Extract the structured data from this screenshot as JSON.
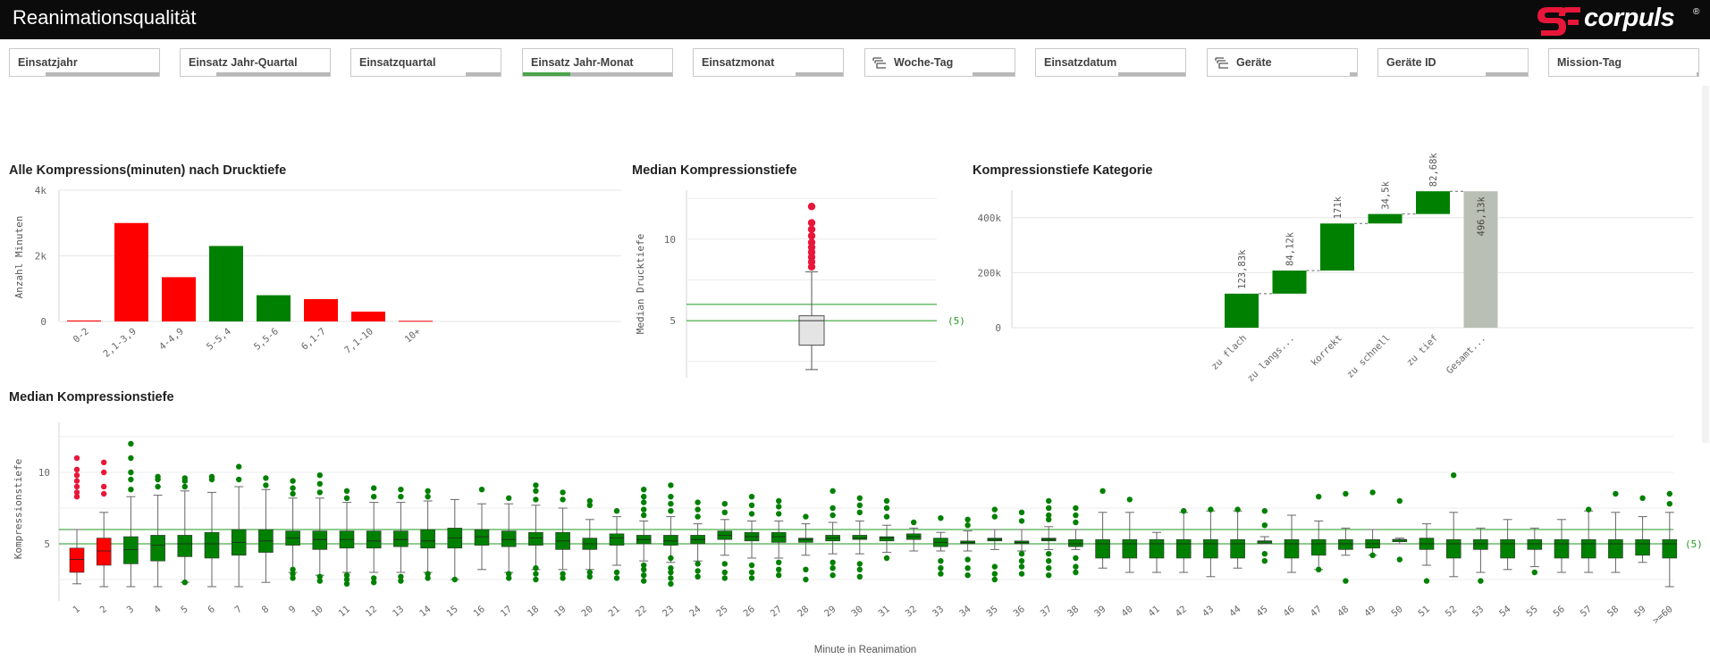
{
  "app": {
    "title": "Reanimationsqualität"
  },
  "logo": {
    "text": "corpuls",
    "registered": "®"
  },
  "filters": [
    {
      "label": "Einsatzjahr",
      "icon": "",
      "selected_fraction": 0
    },
    {
      "label": "Einsatz Jahr-Quartal",
      "icon": "",
      "selected_fraction": 0
    },
    {
      "label": "Einsatzquartal",
      "icon": "",
      "selected_fraction": 0
    },
    {
      "label": "Einsatz Jahr-Monat",
      "icon": "",
      "selected_fraction": 0.32
    },
    {
      "label": "Einsatzmonat",
      "icon": "",
      "selected_fraction": 0
    },
    {
      "label": "Woche-Tag",
      "icon": "drill-down-icon",
      "selected_fraction": 0
    },
    {
      "label": "Einsatzdatum",
      "icon": "",
      "selected_fraction": 0
    },
    {
      "label": "Geräte",
      "icon": "drill-down-icon",
      "selected_fraction": 0
    },
    {
      "label": "Geräte ID",
      "icon": "",
      "selected_fraction": 0
    },
    {
      "label": "Mission-Tag",
      "icon": "",
      "selected_fraction": 0
    }
  ],
  "colors": {
    "red": "#ff0000",
    "green": "#008000",
    "grey_total": "#b9bfb5",
    "ref_line": "#1f9a1f",
    "outlier_red": "#e8173a",
    "accent_filter": "#4aa34a"
  },
  "chart_data": [
    {
      "id": "histogram",
      "type": "bar",
      "title": "Alle Kompressions(minuten) nach Drucktiefe",
      "ylabel": "Anzahl Minuten",
      "xlabel": "",
      "ylim": [
        0,
        4000
      ],
      "yticks": [
        0,
        2000,
        4000
      ],
      "ytick_labels": [
        "0",
        "2k",
        "4k"
      ],
      "grid": true,
      "categories": [
        "0-2",
        "2,1-3,9",
        "4-4,9",
        "5-5,4",
        "5,5-6",
        "6,1-7",
        "7,1-10",
        "10+"
      ],
      "values": [
        30,
        3000,
        1350,
        2300,
        800,
        680,
        300,
        20
      ],
      "bar_colors": [
        "#ff0000",
        "#ff0000",
        "#ff0000",
        "#008000",
        "#008000",
        "#ff0000",
        "#ff0000",
        "#ff0000"
      ]
    },
    {
      "id": "overall-box",
      "type": "box",
      "title": "Median Kompressionstiefe",
      "ylabel": "Median Drucktiefe",
      "xlabel": "",
      "ylim": [
        1.5,
        13
      ],
      "yticks": [
        5,
        10
      ],
      "grid": true,
      "box": {
        "whisker_low": 2,
        "q1": 3.5,
        "median": 5,
        "q3": 5.3,
        "whisker_high": 8
      },
      "outliers": [
        8.3,
        8.6,
        8.9,
        9.2,
        9.5,
        9.8,
        10.2,
        10.6,
        11,
        12
      ],
      "ref_lines": [
        6,
        5
      ],
      "ref_label": "(5)"
    },
    {
      "id": "waterfall",
      "type": "waterfall",
      "title": "Kompressionstiefe Kategorie",
      "ylabel": "",
      "xlabel": "",
      "ylim": [
        0,
        500000
      ],
      "yticks": [
        0,
        200000,
        400000
      ],
      "ytick_labels": [
        "0",
        "200k",
        "400k"
      ],
      "grid": true,
      "categories": [
        "zu flach",
        "zu langs...",
        "korrekt",
        "zu schnell",
        "zu tief",
        "Gesamt..."
      ],
      "values": [
        123830,
        84120,
        171000,
        34500,
        82680,
        496130
      ],
      "value_labels": [
        "123,83k",
        "84,12k",
        "171k",
        "34,5k",
        "82,68k",
        "496,13k"
      ],
      "is_total": [
        false,
        false,
        false,
        false,
        false,
        true
      ]
    },
    {
      "id": "minute-box",
      "type": "box",
      "title": "Median Kompressionstiefe",
      "ylabel": "Kompressionstiefe",
      "xlabel": "Minute in Reanimation",
      "ylim": [
        1,
        13.5
      ],
      "yticks": [
        5,
        10
      ],
      "grid": true,
      "ref_lines": [
        6,
        5
      ],
      "ref_label": "(5)",
      "categories": [
        "1",
        "2",
        "3",
        "4",
        "5",
        "6",
        "7",
        "8",
        "9",
        "10",
        "11",
        "12",
        "13",
        "14",
        "15",
        "16",
        "17",
        "18",
        "19",
        "20",
        "21",
        "22",
        "23",
        "24",
        "25",
        "26",
        "27",
        "28",
        "29",
        "30",
        "31",
        "32",
        "33",
        "34",
        "35",
        "36",
        "37",
        "38",
        "39",
        "40",
        "41",
        "42",
        "43",
        "44",
        "45",
        "46",
        "47",
        "48",
        "49",
        "50",
        "51",
        "52",
        "53",
        "54",
        "55",
        "56",
        "57",
        "58",
        "59",
        ">=60"
      ],
      "boxes": [
        {
          "lo": 2.2,
          "q1": 3,
          "med": 3.9,
          "q3": 4.7,
          "hi": 6,
          "out": [
            8.3,
            8.6,
            9,
            9.4,
            9.8,
            10.2,
            11
          ],
          "color": "#ff0000",
          "out_color": "#e8173a"
        },
        {
          "lo": 2,
          "q1": 3.5,
          "med": 4.5,
          "q3": 5.4,
          "hi": 7.2,
          "out": [
            8.5,
            9,
            10,
            10.7
          ],
          "color": "#ff0000",
          "out_color": "#e8173a"
        },
        {
          "lo": 2,
          "q1": 3.6,
          "med": 4.6,
          "q3": 5.5,
          "hi": 8.3,
          "out": [
            8.8,
            9.5,
            10,
            11,
            12
          ]
        },
        {
          "lo": 2,
          "q1": 3.8,
          "med": 4.9,
          "q3": 5.6,
          "hi": 8.4,
          "out": [
            9,
            9.5,
            9.7
          ]
        },
        {
          "lo": 2.3,
          "q1": 4.1,
          "med": 5,
          "q3": 5.6,
          "hi": 8.7,
          "out": [
            9,
            9.4,
            9.6,
            2.3
          ]
        },
        {
          "lo": 2,
          "q1": 4,
          "med": 5,
          "q3": 5.8,
          "hi": 8.6,
          "out": [
            9.5,
            9.7
          ]
        },
        {
          "lo": 2,
          "q1": 4.2,
          "med": 5.1,
          "q3": 6,
          "hi": 9,
          "out": [
            9.5,
            10.4
          ]
        },
        {
          "lo": 2.3,
          "q1": 4.4,
          "med": 5.2,
          "q3": 6,
          "hi": 8.8,
          "out": [
            9.1,
            9.6
          ]
        },
        {
          "lo": 3,
          "q1": 4.9,
          "med": 5.4,
          "q3": 5.9,
          "hi": 8.2,
          "out": [
            8.5,
            8.9,
            9.4,
            2.6,
            2.9,
            3.2
          ]
        },
        {
          "lo": 2.8,
          "q1": 4.6,
          "med": 5.3,
          "q3": 5.9,
          "hi": 8.2,
          "out": [
            8.6,
            9.2,
            9.8,
            2.4,
            2.7
          ]
        },
        {
          "lo": 3,
          "q1": 4.7,
          "med": 5.3,
          "q3": 5.9,
          "hi": 7.9,
          "out": [
            8.2,
            8.7,
            2.2,
            2.5,
            2.8
          ]
        },
        {
          "lo": 3,
          "q1": 4.7,
          "med": 5.2,
          "q3": 5.9,
          "hi": 7.9,
          "out": [
            8.3,
            8.9,
            2.3,
            2.6
          ]
        },
        {
          "lo": 3,
          "q1": 4.8,
          "med": 5.3,
          "q3": 5.9,
          "hi": 7.9,
          "out": [
            8.3,
            8.8,
            2.4,
            2.7
          ]
        },
        {
          "lo": 3,
          "q1": 4.7,
          "med": 5.2,
          "q3": 6,
          "hi": 8,
          "out": [
            8.3,
            8.7,
            2.6,
            2.9
          ]
        },
        {
          "lo": 2.5,
          "q1": 4.7,
          "med": 5.4,
          "q3": 6.1,
          "hi": 8.1,
          "out": [
            2.5
          ]
        },
        {
          "lo": 3.2,
          "q1": 4.9,
          "med": 5.5,
          "q3": 6,
          "hi": 7.8,
          "out": [
            8.8
          ]
        },
        {
          "lo": 3,
          "q1": 4.8,
          "med": 5.3,
          "q3": 5.9,
          "hi": 7.8,
          "out": [
            8.2,
            2.6,
            2.9
          ]
        },
        {
          "lo": 3.2,
          "q1": 4.9,
          "med": 5.4,
          "q3": 5.8,
          "hi": 7.7,
          "out": [
            8.1,
            8.7,
            9.1,
            2.5,
            2.9,
            3.3
          ]
        },
        {
          "lo": 3.2,
          "q1": 4.6,
          "med": 5.2,
          "q3": 5.8,
          "hi": 7.5,
          "out": [
            8.1,
            8.6,
            2.6,
            2.9
          ]
        },
        {
          "lo": 3.2,
          "q1": 4.6,
          "med": 5,
          "q3": 5.4,
          "hi": 6.7,
          "out": [
            7.7,
            8,
            2.7,
            3
          ]
        },
        {
          "lo": 3.5,
          "q1": 4.9,
          "med": 5.4,
          "q3": 5.7,
          "hi": 6.9,
          "out": [
            7.3,
            2.6,
            3
          ]
        },
        {
          "lo": 3.8,
          "q1": 5,
          "med": 5.3,
          "q3": 5.6,
          "hi": 6.6,
          "out": [
            7,
            7.4,
            7.9,
            8.3,
            8.8,
            2.4,
            2.8,
            3.2,
            3.5
          ]
        },
        {
          "lo": 3.7,
          "q1": 4.9,
          "med": 5.2,
          "q3": 5.6,
          "hi": 6.9,
          "out": [
            7.3,
            7.8,
            8.3,
            9.1,
            2.2,
            2.6,
            3,
            3.3,
            4
          ]
        },
        {
          "lo": 3.8,
          "q1": 5,
          "med": 5.3,
          "q3": 5.6,
          "hi": 6.4,
          "out": [
            6.9,
            7.4,
            7.9,
            2.7,
            3.1,
            3.6
          ]
        },
        {
          "lo": 4.2,
          "q1": 5.3,
          "med": 5.6,
          "q3": 5.9,
          "hi": 6.7,
          "out": [
            7.2,
            7.8,
            2.6,
            3,
            3.6
          ]
        },
        {
          "lo": 4,
          "q1": 5.2,
          "med": 5.5,
          "q3": 5.8,
          "hi": 6.6,
          "out": [
            7.1,
            7.7,
            8.3,
            2.6,
            3,
            3.5
          ]
        },
        {
          "lo": 4,
          "q1": 5.1,
          "med": 5.5,
          "q3": 5.8,
          "hi": 6.6,
          "out": [
            7.1,
            7.6,
            8,
            2.8,
            3.2,
            3.7
          ]
        },
        {
          "lo": 4.2,
          "q1": 5.1,
          "med": 5.3,
          "q3": 5.4,
          "hi": 6.4,
          "out": [
            6.9,
            2.5,
            3.2
          ]
        },
        {
          "lo": 4.3,
          "q1": 5.2,
          "med": 5.4,
          "q3": 5.6,
          "hi": 6.5,
          "out": [
            7,
            7.5,
            8.7,
            2.8,
            3.3,
            3.7
          ]
        },
        {
          "lo": 4.3,
          "q1": 5.3,
          "med": 5.4,
          "q3": 5.6,
          "hi": 6.6,
          "out": [
            7.2,
            7.7,
            8.2,
            2.7,
            3.2,
            3.6
          ]
        },
        {
          "lo": 4.4,
          "q1": 5.2,
          "med": 5.4,
          "q3": 5.5,
          "hi": 6.3,
          "out": [
            6.9,
            7.5,
            8,
            4
          ]
        },
        {
          "lo": 4.5,
          "q1": 5.3,
          "med": 5.5,
          "q3": 5.7,
          "hi": 6.1,
          "out": [
            6.5
          ]
        },
        {
          "lo": 4.5,
          "q1": 4.8,
          "med": 5.1,
          "q3": 5.4,
          "hi": 5.8,
          "out": [
            6.8,
            2.9,
            3.3,
            3.8
          ]
        },
        {
          "lo": 4.5,
          "q1": 5,
          "med": 5.1,
          "q3": 5.2,
          "hi": 5.9,
          "out": [
            6.7,
            6.3,
            2.8,
            3.3,
            3.9
          ]
        },
        {
          "lo": 4.6,
          "q1": 5.2,
          "med": 5.3,
          "q3": 5.4,
          "hi": 6,
          "out": [
            7.4,
            6.9,
            2.5,
            2.9,
            3.4
          ]
        },
        {
          "lo": 4.5,
          "q1": 5,
          "med": 5.1,
          "q3": 5.2,
          "hi": 6,
          "out": [
            7.2,
            6.6,
            2.9,
            3.4,
            3.8,
            4.3
          ]
        },
        {
          "lo": 4.6,
          "q1": 5.2,
          "med": 5.3,
          "q3": 5.4,
          "hi": 6.2,
          "out": [
            8,
            7.5,
            7,
            6.7,
            2.8,
            3.3,
            3.8,
            4.3
          ]
        },
        {
          "lo": 4.6,
          "q1": 4.8,
          "med": 5,
          "q3": 5.3,
          "hi": 6,
          "out": [
            7.5,
            7,
            6.5,
            3,
            3.4,
            4
          ]
        },
        {
          "lo": 3.3,
          "q1": 4,
          "med": 5,
          "q3": 5.3,
          "hi": 7.2,
          "out": [
            8.7
          ]
        },
        {
          "lo": 3,
          "q1": 4,
          "med": 5,
          "q3": 5.3,
          "hi": 7.2,
          "out": [
            8.1
          ]
        },
        {
          "lo": 3,
          "q1": 4,
          "med": 5,
          "q3": 5.3,
          "hi": 5.8,
          "out": []
        },
        {
          "lo": 3,
          "q1": 4,
          "med": 5,
          "q3": 5.3,
          "hi": 7.2,
          "out": [
            7.3
          ]
        },
        {
          "lo": 2.7,
          "q1": 4,
          "med": 5,
          "q3": 5.3,
          "hi": 7.3,
          "out": [
            7.4
          ]
        },
        {
          "lo": 3.3,
          "q1": 4,
          "med": 5,
          "q3": 5.3,
          "hi": 7.3,
          "out": [
            7.4
          ]
        },
        {
          "lo": 5,
          "q1": 5.1,
          "med": 5.2,
          "q3": 5.2,
          "hi": 5.5,
          "out": [
            7.3,
            6.3,
            3.8,
            4.3
          ]
        },
        {
          "lo": 3,
          "q1": 4,
          "med": 5,
          "q3": 5.3,
          "hi": 7,
          "out": []
        },
        {
          "lo": 3.2,
          "q1": 4.2,
          "med": 5,
          "q3": 5.3,
          "hi": 6.6,
          "out": [
            8.3,
            3.2
          ]
        },
        {
          "lo": 4.2,
          "q1": 4.6,
          "med": 5,
          "q3": 5.3,
          "hi": 6.1,
          "out": [
            8.5,
            2.4
          ]
        },
        {
          "lo": 4.2,
          "q1": 4.7,
          "med": 5,
          "q3": 5.3,
          "hi": 6,
          "out": [
            8.6,
            4.2
          ]
        },
        {
          "lo": 5,
          "q1": 5.2,
          "med": 5.3,
          "q3": 5.3,
          "hi": 5.4,
          "out": [
            8,
            3.9
          ]
        },
        {
          "lo": 3.5,
          "q1": 4.6,
          "med": 5,
          "q3": 5.4,
          "hi": 6.4,
          "out": [
            2.4
          ]
        },
        {
          "lo": 2.7,
          "q1": 4,
          "med": 5,
          "q3": 5.3,
          "hi": 7.2,
          "out": [
            9.8
          ]
        },
        {
          "lo": 3,
          "q1": 4.6,
          "med": 5,
          "q3": 5.3,
          "hi": 6.1,
          "out": [
            2.4
          ]
        },
        {
          "lo": 3.2,
          "q1": 4,
          "med": 5,
          "q3": 5.3,
          "hi": 6.7,
          "out": []
        },
        {
          "lo": 3.4,
          "q1": 4.6,
          "med": 5,
          "q3": 5.3,
          "hi": 6.1,
          "out": [
            3
          ]
        },
        {
          "lo": 3,
          "q1": 4,
          "med": 5,
          "q3": 5.3,
          "hi": 6.7,
          "out": []
        },
        {
          "lo": 3,
          "q1": 4,
          "med": 5,
          "q3": 5.3,
          "hi": 7.3,
          "out": [
            7.4
          ]
        },
        {
          "lo": 3,
          "q1": 4,
          "med": 5,
          "q3": 5.3,
          "hi": 7.2,
          "out": [
            8.5
          ]
        },
        {
          "lo": 3.7,
          "q1": 4.2,
          "med": 5,
          "q3": 5.3,
          "hi": 6.9,
          "out": [
            8.2
          ]
        },
        {
          "lo": 2,
          "q1": 4,
          "med": 5,
          "q3": 5.3,
          "hi": 7.2,
          "out": [
            7.8,
            8.5
          ]
        }
      ]
    }
  ]
}
